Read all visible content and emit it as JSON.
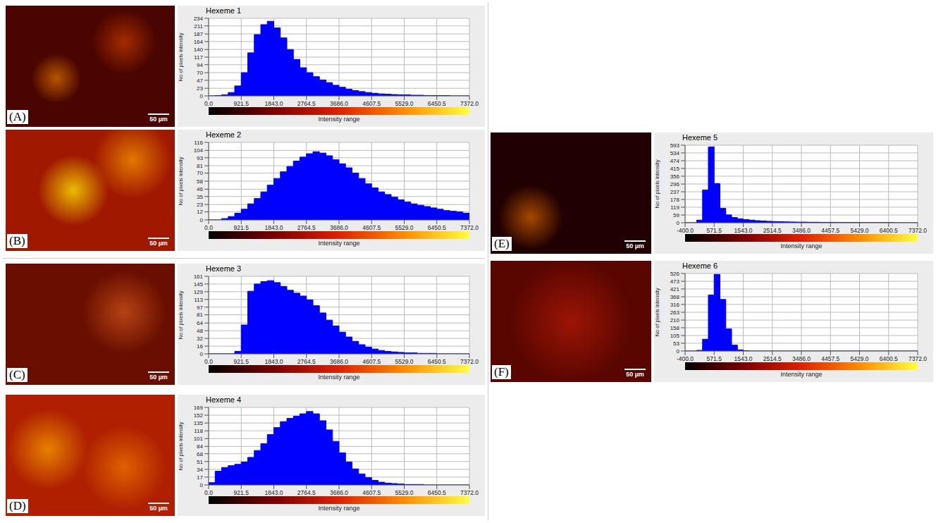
{
  "chart_data": [
    {
      "type": "histogram",
      "title": "Hexeme 1",
      "panel": "(A)",
      "scale_bar": "50 µm",
      "xlabel": "Intensity range",
      "ylabel": "No of pixels intensity",
      "color": "#0000ff",
      "grid": true,
      "bins": [
        0,
        184.3,
        368.6,
        552.9,
        737.2,
        921.5,
        1105.8,
        1290.1,
        1474.4,
        1658.7,
        1843,
        2027.3,
        2211.6,
        2395.9,
        2580.2,
        2764.5,
        2948.8,
        3133.1,
        3317.4,
        3501.7,
        3686,
        3870.3,
        4054.6,
        4238.9,
        4423.2,
        4607.5,
        4791.8,
        4976.1,
        5160.4,
        5344.7,
        5529,
        5713.3,
        5897.6,
        6081.9,
        6266.2,
        6450.5,
        6634.8,
        6819.1,
        7003.4,
        7187.7,
        7372
      ],
      "counts": [
        0,
        1,
        3,
        10,
        30,
        70,
        130,
        185,
        215,
        225,
        205,
        175,
        140,
        110,
        85,
        70,
        58,
        48,
        40,
        32,
        26,
        20,
        16,
        13,
        10,
        8,
        6,
        5,
        4,
        3,
        3,
        2,
        2,
        1,
        1,
        1,
        1,
        0,
        0,
        0
      ],
      "xlim": [
        0,
        7372
      ],
      "xticks": [
        {
          "value": 0,
          "label": "0.0"
        },
        921.5,
        {
          "value": 1843,
          "label": "1843.0"
        },
        2764.5,
        {
          "value": 3686,
          "label": "3686.0"
        },
        4607.5,
        {
          "value": 5529,
          "label": "5529.0"
        },
        6450.5,
        {
          "value": 7372,
          "label": "7372.0"
        }
      ],
      "ylim": [
        0,
        234
      ],
      "yticks": [
        0,
        23,
        47,
        70,
        94,
        117,
        140,
        164,
        187,
        211,
        234
      ]
    },
    {
      "type": "histogram",
      "title": "Hexeme 2",
      "panel": "(B)",
      "scale_bar": "50 µm",
      "xlabel": "Intensity range",
      "ylabel": "No of pixels intensity",
      "color": "#0000ff",
      "grid": true,
      "bins": [
        0,
        184.3,
        368.6,
        552.9,
        737.2,
        921.5,
        1105.8,
        1290.1,
        1474.4,
        1658.7,
        1843,
        2027.3,
        2211.6,
        2395.9,
        2580.2,
        2764.5,
        2948.8,
        3133.1,
        3317.4,
        3501.7,
        3686,
        3870.3,
        4054.6,
        4238.9,
        4423.2,
        4607.5,
        4791.8,
        4976.1,
        5160.4,
        5344.7,
        5529,
        5713.3,
        5897.6,
        6081.9,
        6266.2,
        6450.5,
        6634.8,
        6819.1,
        7003.4,
        7187.7,
        7372
      ],
      "counts": [
        0,
        0,
        2,
        5,
        10,
        16,
        24,
        32,
        42,
        52,
        62,
        72,
        80,
        88,
        94,
        99,
        102,
        100,
        96,
        90,
        84,
        78,
        70,
        62,
        54,
        48,
        42,
        38,
        34,
        30,
        27,
        24,
        22,
        20,
        18,
        16,
        14,
        13,
        12,
        10
      ],
      "xlim": [
        0,
        7372
      ],
      "xticks": [
        {
          "value": 0,
          "label": "0.0"
        },
        921.5,
        {
          "value": 1843,
          "label": "1843.0"
        },
        2764.5,
        {
          "value": 3686,
          "label": "3686.0"
        },
        4607.5,
        {
          "value": 5529,
          "label": "5529.0"
        },
        6450.5,
        {
          "value": 7372,
          "label": "7372.0"
        }
      ],
      "ylim": [
        0,
        116
      ],
      "yticks": [
        0,
        12,
        23,
        35,
        46,
        58,
        70,
        81,
        93,
        104,
        116
      ]
    },
    {
      "type": "histogram",
      "title": "Hexeme 3",
      "panel": "(C)",
      "scale_bar": "50 µm",
      "xlabel": "Intensity range",
      "ylabel": "No of pixels intensity",
      "color": "#0000ff",
      "grid": true,
      "bins": [
        0,
        184.3,
        368.6,
        552.9,
        737.2,
        921.5,
        1105.8,
        1290.1,
        1474.4,
        1658.7,
        1843,
        2027.3,
        2211.6,
        2395.9,
        2580.2,
        2764.5,
        2948.8,
        3133.1,
        3317.4,
        3501.7,
        3686,
        3870.3,
        4054.6,
        4238.9,
        4423.2,
        4607.5,
        4791.8,
        4976.1,
        5160.4,
        5344.7,
        5529,
        5713.3,
        5897.6,
        6081.9,
        6266.2,
        6450.5,
        6634.8,
        6819.1,
        7003.4,
        7187.7,
        7372
      ],
      "counts": [
        0,
        0,
        0,
        0,
        5,
        60,
        130,
        145,
        150,
        152,
        148,
        140,
        132,
        126,
        120,
        112,
        100,
        85,
        70,
        58,
        45,
        35,
        26,
        19,
        14,
        10,
        7,
        5,
        4,
        3,
        2,
        2,
        1,
        1,
        1,
        0,
        0,
        0,
        0,
        0
      ],
      "xlim": [
        0,
        7372
      ],
      "xticks": [
        {
          "value": 0,
          "label": "0.0"
        },
        921.5,
        {
          "value": 1843,
          "label": "1843.0"
        },
        2764.5,
        {
          "value": 3686,
          "label": "3686.0"
        },
        4607.5,
        {
          "value": 5529,
          "label": "5529.0"
        },
        6450.5,
        {
          "value": 7372,
          "label": "7372.0"
        }
      ],
      "ylim": [
        0,
        161
      ],
      "yticks": [
        0,
        16,
        32,
        48,
        64,
        81,
        97,
        113,
        129,
        145,
        161
      ]
    },
    {
      "type": "histogram",
      "title": "Hexeme 4",
      "panel": "(D)",
      "scale_bar": "50 µm",
      "xlabel": "Intensity range",
      "ylabel": "No of pixels intensity",
      "color": "#0000ff",
      "grid": true,
      "bins": [
        0,
        184.3,
        368.6,
        552.9,
        737.2,
        921.5,
        1105.8,
        1290.1,
        1474.4,
        1658.7,
        1843,
        2027.3,
        2211.6,
        2395.9,
        2580.2,
        2764.5,
        2948.8,
        3133.1,
        3317.4,
        3501.7,
        3686,
        3870.3,
        4054.6,
        4238.9,
        4423.2,
        4607.5,
        4791.8,
        4976.1,
        5160.4,
        5344.7,
        5529,
        5713.3,
        5897.6,
        6081.9,
        6266.2,
        6450.5,
        6634.8,
        6819.1,
        7003.4,
        7187.7,
        7372
      ],
      "counts": [
        5,
        30,
        38,
        42,
        45,
        50,
        60,
        75,
        90,
        110,
        125,
        138,
        145,
        150,
        155,
        160,
        155,
        140,
        120,
        95,
        70,
        50,
        35,
        24,
        16,
        10,
        6,
        4,
        3,
        2,
        1,
        1,
        1,
        0,
        0,
        0,
        0,
        0,
        0,
        0
      ],
      "xlim": [
        0,
        7372
      ],
      "xticks": [
        {
          "value": 0,
          "label": "0.0"
        },
        921.5,
        {
          "value": 1843,
          "label": "1843.0"
        },
        2764.5,
        {
          "value": 3686,
          "label": "3686.0"
        },
        4607.5,
        {
          "value": 5529,
          "label": "5529.0"
        },
        6450.5,
        {
          "value": 7372,
          "label": "7372.0"
        }
      ],
      "ylim": [
        0,
        169
      ],
      "yticks": [
        0,
        17,
        34,
        51,
        68,
        84,
        101,
        118,
        135,
        152,
        169
      ]
    },
    {
      "type": "histogram",
      "title": "Hexeme 5",
      "panel": "(E)",
      "scale_bar": "50 µm",
      "xlabel": "Intensity range",
      "ylabel": "No of pixels intensity",
      "color": "#0000ff",
      "grid": true,
      "bins": [
        -400,
        -205.7,
        -11.4,
        182.9,
        377.2,
        571.5,
        765.8,
        960.1,
        1154.4,
        1348.7,
        1543,
        1737.3,
        1931.6,
        2125.9,
        2320.2,
        2514.5,
        2708.8,
        2903.1,
        3097.4,
        3291.7,
        3486,
        3680.3,
        3874.6,
        4068.9,
        4263.2,
        4457.5,
        4651.8,
        4846.1,
        5040.4,
        5234.7,
        5429,
        5623.3,
        5817.6,
        6011.9,
        6206.2,
        6400.5,
        6594.8,
        6789.1,
        6983.4,
        7177.7,
        7372
      ],
      "counts": [
        0,
        0,
        20,
        250,
        580,
        300,
        110,
        60,
        40,
        30,
        24,
        20,
        16,
        13,
        11,
        9,
        8,
        7,
        6,
        5,
        5,
        4,
        4,
        3,
        3,
        3,
        2,
        2,
        2,
        2,
        1,
        1,
        1,
        1,
        1,
        1,
        0,
        0,
        0,
        0
      ],
      "xlim": [
        -400,
        7372
      ],
      "xticks": [
        {
          "value": -400,
          "label": "-400.0"
        },
        571.5,
        {
          "value": 1543,
          "label": "1543.0"
        },
        2514.5,
        {
          "value": 3486,
          "label": "3486.0"
        },
        4457.5,
        {
          "value": 5429,
          "label": "5429.0"
        },
        6400.5,
        {
          "value": 7372,
          "label": "7372.0"
        }
      ],
      "ylim": [
        0,
        593
      ],
      "yticks": [
        0,
        59,
        119,
        178,
        237,
        296,
        356,
        415,
        474,
        534,
        593
      ]
    },
    {
      "type": "histogram",
      "title": "Hexeme 6",
      "panel": "(F)",
      "scale_bar": "50 µm",
      "xlabel": "Intensity range",
      "ylabel": "No of pixels intensity",
      "color": "#0000ff",
      "grid": true,
      "bins": [
        -400,
        -205.7,
        -11.4,
        182.9,
        377.2,
        571.5,
        765.8,
        960.1,
        1154.4,
        1348.7,
        1543,
        1737.3,
        1931.6,
        2125.9,
        2320.2,
        2514.5,
        2708.8,
        2903.1,
        3097.4,
        3291.7,
        3486,
        3680.3,
        3874.6,
        4068.9,
        4263.2,
        4457.5,
        4651.8,
        4846.1,
        5040.4,
        5234.7,
        5429,
        5623.3,
        5817.6,
        6011.9,
        6206.2,
        6400.5,
        6594.8,
        6789.1,
        6983.4,
        7177.7,
        7372
      ],
      "counts": [
        0,
        0,
        5,
        80,
        380,
        520,
        350,
        150,
        40,
        8,
        2,
        0,
        0,
        0,
        0,
        0,
        0,
        0,
        0,
        0,
        0,
        0,
        0,
        0,
        0,
        0,
        0,
        0,
        0,
        0,
        0,
        0,
        0,
        0,
        0,
        0,
        0,
        0,
        0,
        0
      ],
      "xlim": [
        -400,
        7372
      ],
      "xticks": [
        {
          "value": -400,
          "label": "-400.0"
        },
        571.5,
        {
          "value": 1543,
          "label": "1543.0"
        },
        2514.5,
        {
          "value": 3486,
          "label": "3486.0"
        },
        4457.5,
        {
          "value": 5429,
          "label": "5429.0"
        },
        6400.5,
        {
          "value": 7372,
          "label": "7372.0"
        }
      ],
      "ylim": [
        0,
        526
      ],
      "yticks": [
        0,
        53,
        105,
        158,
        210,
        263,
        316,
        368,
        421,
        473,
        526
      ]
    }
  ]
}
